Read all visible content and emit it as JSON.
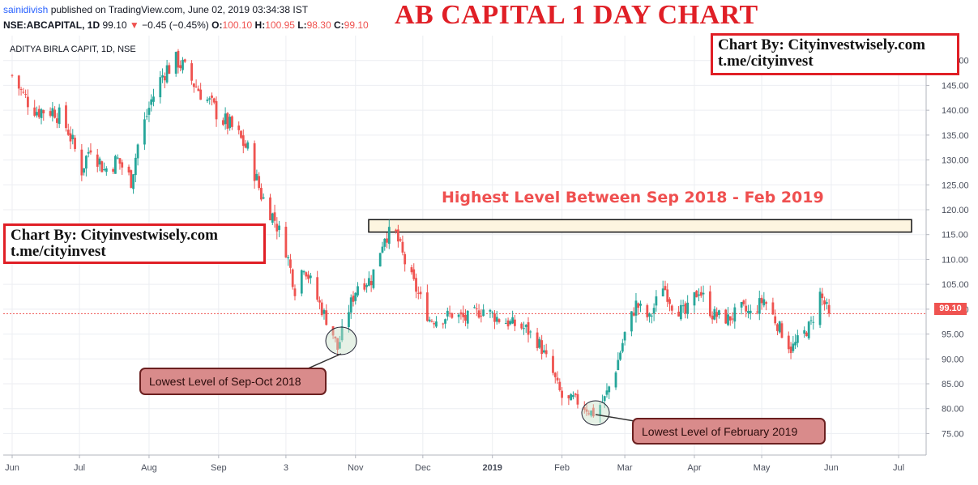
{
  "header": {
    "publisher": "sainidivish",
    "published_text": "published on TradingView.com, June 02, 2019 03:34:38 IST",
    "symbol": "NSE:ABCAPITAL, 1D",
    "last": "99.10",
    "change": "−0.45 (−0.45%)",
    "o_label": "O:",
    "o_value": "100.10",
    "h_label": "H:",
    "h_value": "100.95",
    "l_label": "L:",
    "l_value": "98.30",
    "c_label": "C:",
    "c_value": "99.10"
  },
  "title": "AB CAPITAL 1 DAY CHART",
  "symbol_label": "ADITYA BIRLA CAPIT, 1D, NSE",
  "credit_top": {
    "line1": "Chart By: Cityinvestwisely.com",
    "line2": "t.me/cityinvest"
  },
  "credit_left": {
    "line1": "Chart By: Cityinvestwisely.com",
    "line2": "t.me/cityinvest"
  },
  "annotations": {
    "highest": "Highest Level Between Sep 2018 - Feb 2019",
    "lowest_sep_oct": "Lowest Level of Sep-Oct 2018",
    "lowest_feb": "Lowest Level of February 2019"
  },
  "current_price_label": "99.10",
  "colors": {
    "up": "#26a69a",
    "down": "#ef5350",
    "accent": "#e01f26",
    "callout": "#d98b8b",
    "zone_fill": "#fdf5e0"
  },
  "chart_data": {
    "type": "candlestick",
    "series_name": "ADITYA BIRLA CAPIT, 1D, NSE",
    "ylim": [
      71,
      155
    ],
    "y_ticks": [
      75,
      80,
      85,
      90,
      95,
      100,
      105,
      110,
      115,
      120,
      125,
      130,
      135,
      140,
      145,
      150
    ],
    "x_tick_labels": [
      "Jun",
      "Jul",
      "Aug",
      "Sep",
      "3",
      "Nov",
      "Dec",
      "2019",
      "Feb",
      "Mar",
      "Apr",
      "May",
      "Jun",
      "Jul"
    ],
    "current_price": 99.1,
    "highlight_zone": {
      "label": "Highest Level Between Sep 2018 - Feb 2019",
      "y_low": 115.5,
      "y_high": 118.0
    },
    "close_anchors": [
      [
        "2018-06-01",
        147
      ],
      [
        "2018-06-06",
        143
      ],
      [
        "2018-06-12",
        140
      ],
      [
        "2018-06-20",
        140
      ],
      [
        "2018-06-26",
        136
      ],
      [
        "2018-07-02",
        128
      ],
      [
        "2018-07-06",
        133
      ],
      [
        "2018-07-12",
        128
      ],
      [
        "2018-07-18",
        130
      ],
      [
        "2018-07-24",
        126
      ],
      [
        "2018-07-27",
        133
      ],
      [
        "2018-08-02",
        142
      ],
      [
        "2018-08-08",
        148
      ],
      [
        "2018-08-14",
        150
      ],
      [
        "2018-08-20",
        146
      ],
      [
        "2018-08-27",
        142
      ],
      [
        "2018-09-03",
        138
      ],
      [
        "2018-09-08",
        136
      ],
      [
        "2018-09-14",
        132
      ],
      [
        "2018-09-20",
        123
      ],
      [
        "2018-09-26",
        118
      ],
      [
        "2018-10-01",
        112
      ],
      [
        "2018-10-05",
        104
      ],
      [
        "2018-10-09",
        109
      ],
      [
        "2018-10-15",
        102
      ],
      [
        "2018-10-22",
        95
      ],
      [
        "2018-10-24",
        92
      ],
      [
        "2018-10-29",
        100
      ],
      [
        "2018-11-02",
        105
      ],
      [
        "2018-11-08",
        106
      ],
      [
        "2018-11-14",
        115
      ],
      [
        "2018-11-19",
        115
      ],
      [
        "2018-11-24",
        108
      ],
      [
        "2018-11-30",
        102
      ],
      [
        "2018-12-04",
        98
      ],
      [
        "2018-12-08",
        98
      ],
      [
        "2018-12-14",
        99
      ],
      [
        "2018-12-20",
        98
      ],
      [
        "2018-12-28",
        100
      ],
      [
        "2019-01-04",
        98
      ],
      [
        "2019-01-10",
        97
      ],
      [
        "2019-01-16",
        96
      ],
      [
        "2019-01-22",
        93
      ],
      [
        "2019-01-28",
        87
      ],
      [
        "2019-02-02",
        81
      ],
      [
        "2019-02-06",
        82
      ],
      [
        "2019-02-12",
        80
      ],
      [
        "2019-02-15",
        79
      ],
      [
        "2019-02-20",
        82
      ],
      [
        "2019-02-25",
        88
      ],
      [
        "2019-03-01",
        95
      ],
      [
        "2019-03-06",
        101
      ],
      [
        "2019-03-12",
        98
      ],
      [
        "2019-03-18",
        105
      ],
      [
        "2019-03-22",
        101
      ],
      [
        "2019-03-28",
        99
      ],
      [
        "2019-04-03",
        104
      ],
      [
        "2019-04-09",
        99
      ],
      [
        "2019-04-16",
        98
      ],
      [
        "2019-04-22",
        100
      ],
      [
        "2019-04-26",
        99
      ],
      [
        "2019-05-02",
        102
      ],
      [
        "2019-05-08",
        97
      ],
      [
        "2019-05-14",
        92
      ],
      [
        "2019-05-18",
        94
      ],
      [
        "2019-05-23",
        97
      ],
      [
        "2019-05-27",
        103
      ],
      [
        "2019-05-31",
        99
      ]
    ]
  }
}
